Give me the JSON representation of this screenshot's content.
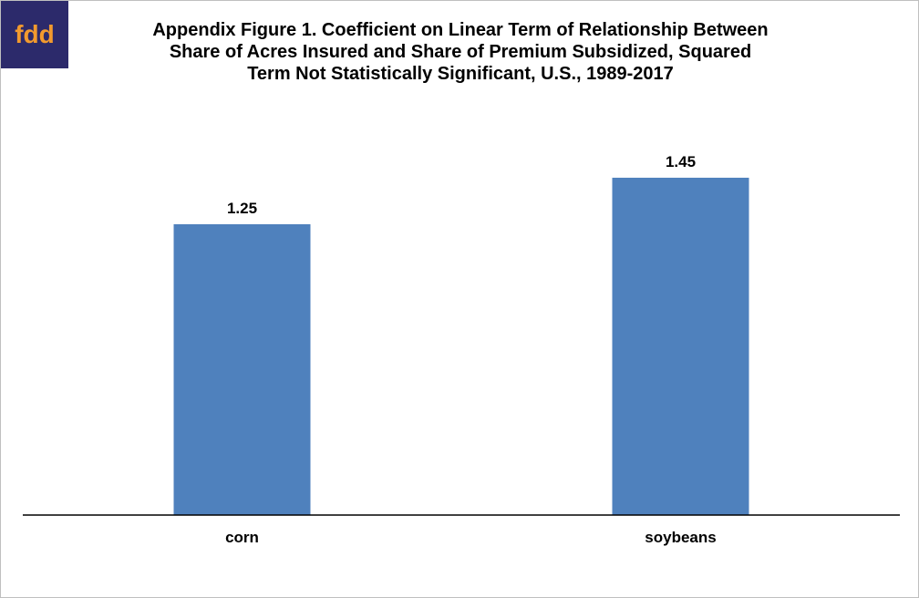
{
  "logo": {
    "text": "fdd",
    "bg_color": "#2c2a6b",
    "text_color": "#f29a2e"
  },
  "chart_data": {
    "type": "bar",
    "title_lines": [
      "Appendix Figure 1.  Coefficient on Linear Term of Relationship Between",
      "Share of Acres Insured and Share of Premium Subsidized, Squared",
      "Term Not Statistically Significant, U.S., 1989-2017"
    ],
    "categories": [
      "corn",
      "soybeans"
    ],
    "values": [
      1.25,
      1.45
    ],
    "data_labels": [
      "1.25",
      "1.45"
    ],
    "ylim": [
      0,
      1.6
    ],
    "grid": false,
    "legend": "none",
    "bar_color": "#4f81bd"
  }
}
